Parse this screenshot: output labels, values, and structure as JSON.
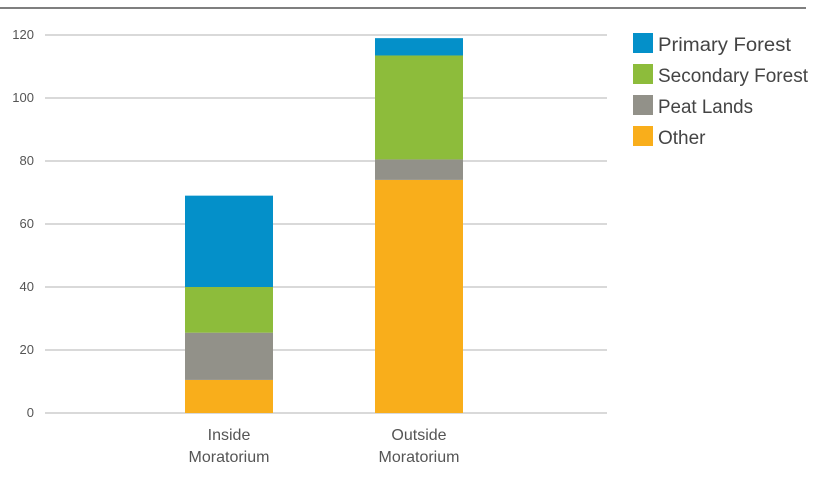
{
  "chart_data": {
    "type": "bar",
    "stacked": true,
    "categories": [
      "Inside Moratorium",
      "Outside Moratorium"
    ],
    "category_lines": [
      [
        "Inside",
        "Moratorium"
      ],
      [
        "Outside",
        "Moratorium"
      ]
    ],
    "series": [
      {
        "name": "Other",
        "values": [
          10.5,
          74
        ],
        "color": "#F9AE1B"
      },
      {
        "name": "Peat Lands",
        "values": [
          15,
          6.5
        ],
        "color": "#929189"
      },
      {
        "name": "Secondary Forest",
        "values": [
          14.5,
          33
        ],
        "color": "#8DBC3B"
      },
      {
        "name": "Primary Forest",
        "values": [
          29,
          5.5
        ],
        "color": "#0490C9"
      }
    ],
    "legend_order": [
      "Primary Forest",
      "Secondary Forest",
      "Peat Lands",
      "Other"
    ],
    "ylim": [
      0,
      120
    ],
    "yticks": [
      0,
      20,
      40,
      60,
      80,
      100,
      120
    ],
    "grid": true,
    "legend_position": "right",
    "title": "",
    "xlabel": "",
    "ylabel": ""
  }
}
